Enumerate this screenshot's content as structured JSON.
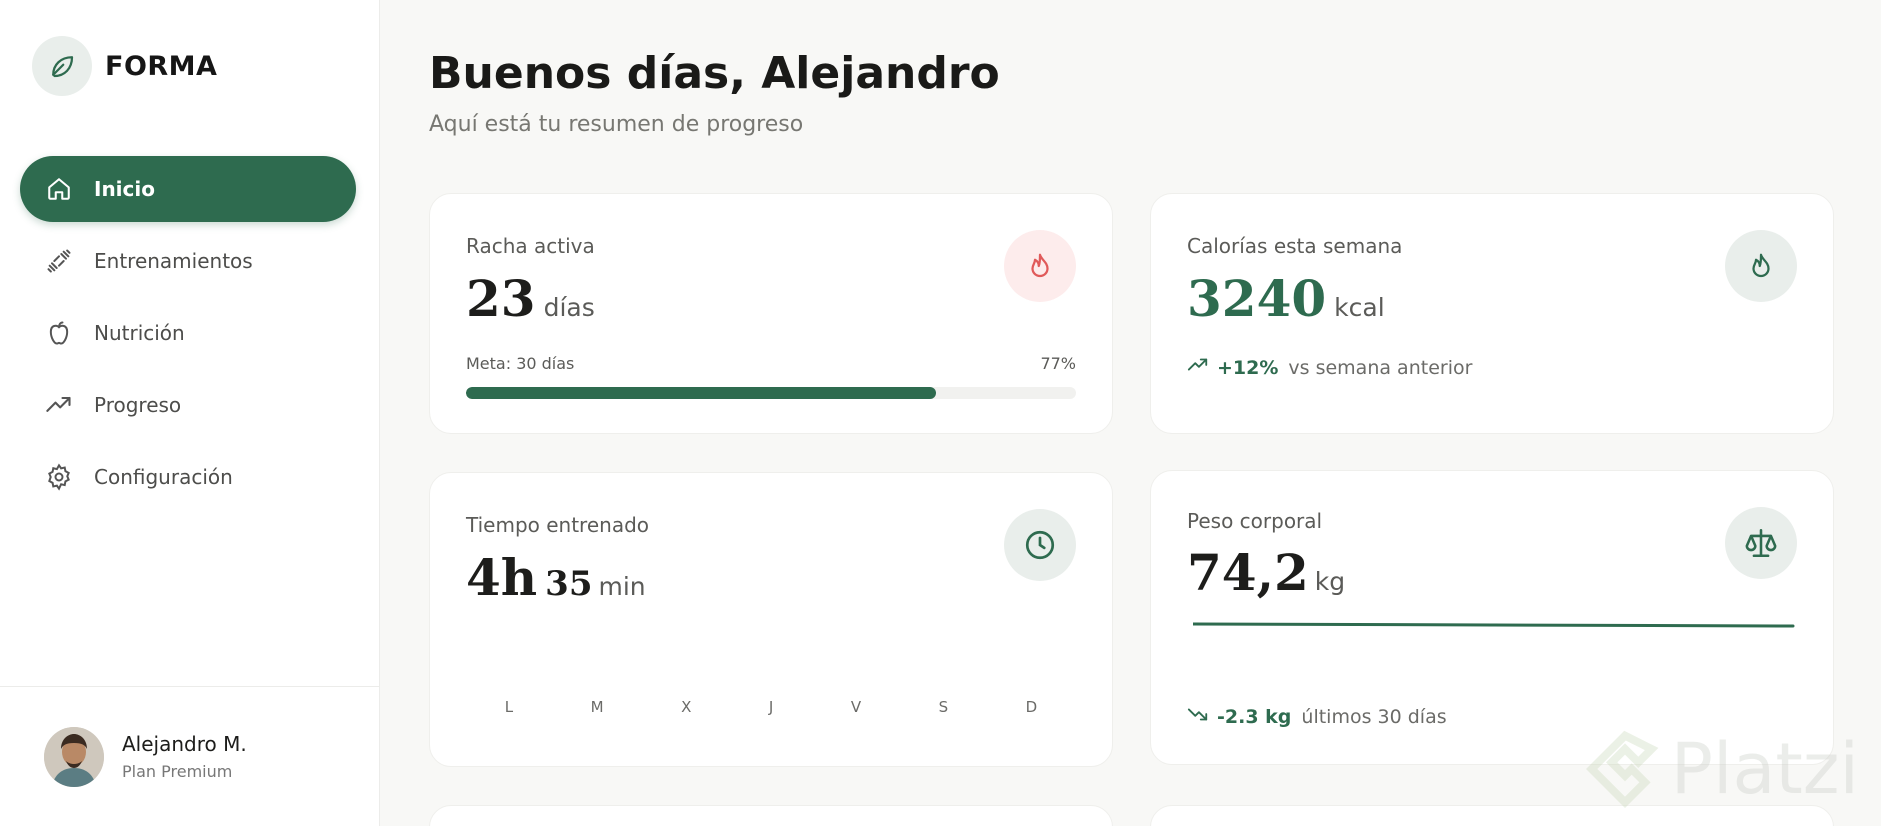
{
  "brand": {
    "name": "FORMA",
    "icon": "leaf-icon"
  },
  "nav": {
    "items": [
      {
        "label": "Inicio",
        "icon": "home-icon",
        "active": true
      },
      {
        "label": "Entrenamientos",
        "icon": "dumbbell-icon",
        "active": false
      },
      {
        "label": "Nutrición",
        "icon": "apple-icon",
        "active": false
      },
      {
        "label": "Progreso",
        "icon": "trending-up-icon",
        "active": false
      },
      {
        "label": "Configuración",
        "icon": "gear-icon",
        "active": false
      }
    ]
  },
  "user": {
    "name": "Alejandro M.",
    "plan": "Plan Premium"
  },
  "header": {
    "greeting": "Buenos días, Alejandro",
    "subtitle": "Aquí está tu resumen de progreso"
  },
  "cards": {
    "streak": {
      "label": "Racha activa",
      "value": "23",
      "unit": "días",
      "goal_label": "Meta: 30 días",
      "percent_label": "77%",
      "progress": 0.77,
      "icon": "flame-icon"
    },
    "calories": {
      "label": "Calorías esta semana",
      "value": "3240",
      "unit": "kcal",
      "trend_value": "+12%",
      "trend_note": "vs semana anterior",
      "icon": "flame-icon"
    },
    "time": {
      "label": "Tiempo entrenado",
      "hours": "4h",
      "minutes": "35",
      "unit": "min",
      "days": [
        "L",
        "M",
        "X",
        "J",
        "V",
        "S",
        "D"
      ],
      "icon": "clock-icon"
    },
    "weight": {
      "label": "Peso corporal",
      "value": "74,2",
      "unit": "kg",
      "trend_value": "-2.3 kg",
      "trend_note": "últimos 30 días",
      "icon": "scale-icon"
    }
  },
  "colors": {
    "accent": "#2e6b4f",
    "streak_icon_bg": "#fdecec",
    "streak_icon": "#e05a5a",
    "icon_bg": "#e9eeeb"
  },
  "watermark": {
    "text": "Platzi"
  }
}
